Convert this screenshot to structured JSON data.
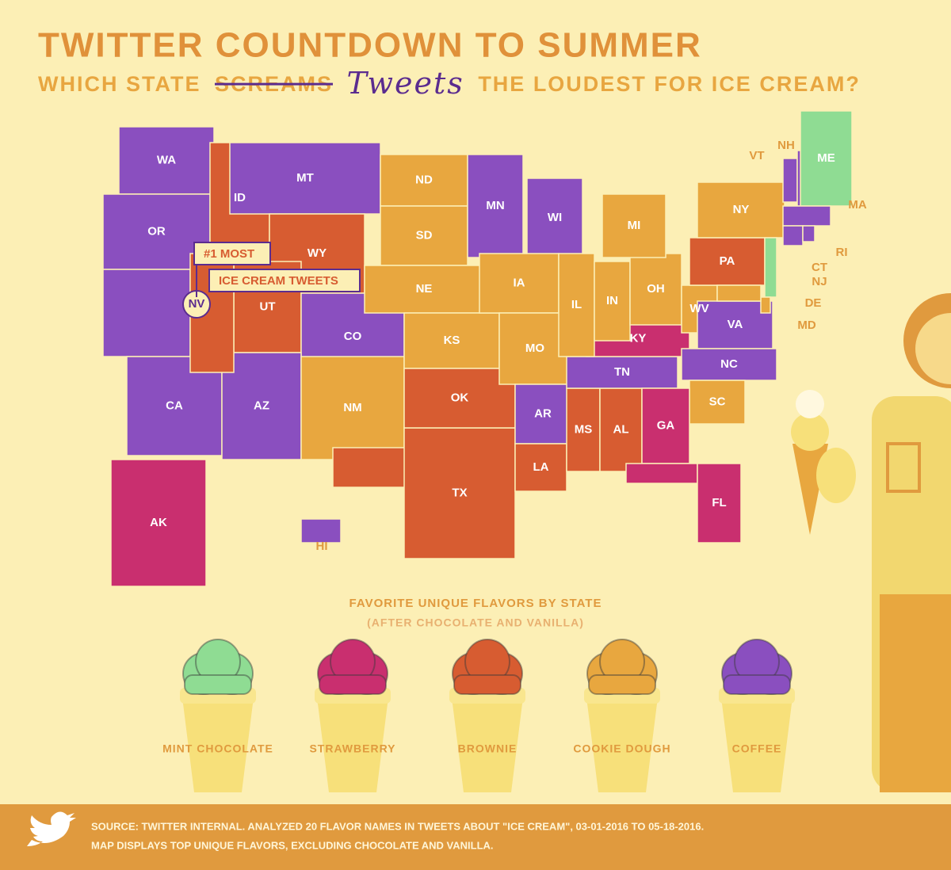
{
  "header": {
    "title": "TWITTER COUNTDOWN TO SUMMER",
    "subtitle_before": "WHICH STATE",
    "struck": "SCREAMS",
    "handwritten": "Tweets",
    "subtitle_after": "THE LOUDEST FOR ICE CREAM?"
  },
  "callout": {
    "line1": "#1 MOST",
    "line2": "ICE CREAM TWEETS"
  },
  "legend": {
    "title": "FAVORITE UNIQUE FLAVORS BY STATE",
    "subtitle": "(AFTER CHOCOLATE AND VANILLA)",
    "flavors": [
      {
        "name": "MINT CHOCOLATE",
        "color": "#8fdc93"
      },
      {
        "name": "STRAWBERRY",
        "color": "#c92f6f"
      },
      {
        "name": "BROWNIE",
        "color": "#d75c31"
      },
      {
        "name": "COOKIE DOUGH",
        "color": "#e8a73f"
      },
      {
        "name": "COFFEE",
        "color": "#8a4fbf"
      }
    ]
  },
  "states": [
    {
      "label": "WA",
      "flavor": "COFFEE"
    },
    {
      "label": "OR",
      "flavor": "COFFEE"
    },
    {
      "label": "CA",
      "flavor": "COFFEE"
    },
    {
      "label": "ID",
      "flavor": "BROWNIE"
    },
    {
      "label": "MT",
      "flavor": "COFFEE"
    },
    {
      "label": "WY",
      "flavor": "BROWNIE"
    },
    {
      "label": "UT",
      "flavor": "BROWNIE"
    },
    {
      "label": "CO",
      "flavor": "COFFEE"
    },
    {
      "label": "AZ",
      "flavor": "COFFEE"
    },
    {
      "label": "NM",
      "flavor": "COOKIE DOUGH"
    },
    {
      "label": "ND",
      "flavor": "COOKIE DOUGH"
    },
    {
      "label": "SD",
      "flavor": "COOKIE DOUGH"
    },
    {
      "label": "NE",
      "flavor": "COOKIE DOUGH"
    },
    {
      "label": "KS",
      "flavor": "COOKIE DOUGH"
    },
    {
      "label": "TX",
      "flavor": "BROWNIE"
    },
    {
      "label": "OK",
      "flavor": "BROWNIE"
    },
    {
      "label": "MN",
      "flavor": "COFFEE"
    },
    {
      "label": "WI",
      "flavor": "COFFEE"
    },
    {
      "label": "IA",
      "flavor": "COOKIE DOUGH"
    },
    {
      "label": "MO",
      "flavor": "COOKIE DOUGH"
    },
    {
      "label": "AR",
      "flavor": "COFFEE"
    },
    {
      "label": "LA",
      "flavor": "BROWNIE"
    },
    {
      "label": "MS",
      "flavor": "BROWNIE"
    },
    {
      "label": "AL",
      "flavor": "BROWNIE"
    },
    {
      "label": "TN",
      "flavor": "COFFEE"
    },
    {
      "label": "KY",
      "flavor": "STRAWBERRY"
    },
    {
      "label": "IL",
      "flavor": "COOKIE DOUGH"
    },
    {
      "label": "IN",
      "flavor": "COOKIE DOUGH"
    },
    {
      "label": "OH",
      "flavor": "COOKIE DOUGH"
    },
    {
      "label": "MI",
      "flavor": "COOKIE DOUGH"
    },
    {
      "label": "WV",
      "flavor": "COOKIE DOUGH"
    },
    {
      "label": "VA",
      "flavor": "COFFEE"
    },
    {
      "label": "NC",
      "flavor": "COFFEE"
    },
    {
      "label": "SC",
      "flavor": "COOKIE DOUGH"
    },
    {
      "label": "GA",
      "flavor": "STRAWBERRY"
    },
    {
      "label": "FL",
      "flavor": "STRAWBERRY"
    },
    {
      "label": "PA",
      "flavor": "BROWNIE"
    },
    {
      "label": "NY",
      "flavor": "COOKIE DOUGH"
    },
    {
      "label": "NJ",
      "flavor": "MINT CHOCOLATE"
    },
    {
      "label": "DE",
      "flavor": "COOKIE DOUGH"
    },
    {
      "label": "MD",
      "flavor": "COOKIE DOUGH"
    },
    {
      "label": "VT",
      "flavor": "COFFEE"
    },
    {
      "label": "NH",
      "flavor": "COFFEE"
    },
    {
      "label": "ME",
      "flavor": "MINT CHOCOLATE"
    },
    {
      "label": "MA",
      "flavor": "COFFEE"
    },
    {
      "label": "CT",
      "flavor": "COFFEE"
    },
    {
      "label": "RI",
      "flavor": "COFFEE"
    },
    {
      "label": "AK",
      "flavor": "STRAWBERRY"
    },
    {
      "label": "HI",
      "flavor": "COFFEE"
    },
    {
      "label": "NV",
      "flavor": "BROWNIE"
    }
  ],
  "footer": {
    "line1": "SOURCE: TWITTER INTERNAL. ANALYZED 20 FLAVOR NAMES IN TWEETS ABOUT \"ICE CREAM\", 03-01-2016 TO 05-18-2016.",
    "line2": "MAP DISPLAYS TOP UNIQUE FLAVORS, EXCLUDING CHOCOLATE AND VANILLA."
  }
}
